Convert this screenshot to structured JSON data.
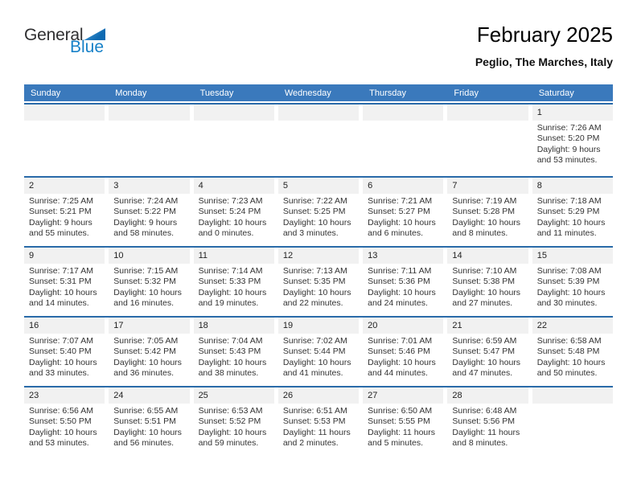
{
  "logo": {
    "general": "General",
    "blue": "Blue"
  },
  "header": {
    "title": "February 2025",
    "subtitle": "Peglio, The Marches, Italy"
  },
  "weekdays": [
    "Sunday",
    "Monday",
    "Tuesday",
    "Wednesday",
    "Thursday",
    "Friday",
    "Saturday"
  ],
  "colors": {
    "header_bg": "#3a79bc",
    "week_line": "#2a6ba9",
    "band_bg": "#f1f1f1",
    "logo_blue": "#1781c8"
  },
  "weeks": [
    [
      {
        "day": ""
      },
      {
        "day": ""
      },
      {
        "day": ""
      },
      {
        "day": ""
      },
      {
        "day": ""
      },
      {
        "day": ""
      },
      {
        "day": "1",
        "sunrise": "Sunrise: 7:26 AM",
        "sunset": "Sunset: 5:20 PM",
        "daylight": [
          "Daylight: 9 hours",
          "and 53 minutes."
        ]
      }
    ],
    [
      {
        "day": "2",
        "sunrise": "Sunrise: 7:25 AM",
        "sunset": "Sunset: 5:21 PM",
        "daylight": [
          "Daylight: 9 hours",
          "and 55 minutes."
        ]
      },
      {
        "day": "3",
        "sunrise": "Sunrise: 7:24 AM",
        "sunset": "Sunset: 5:22 PM",
        "daylight": [
          "Daylight: 9 hours",
          "and 58 minutes."
        ]
      },
      {
        "day": "4",
        "sunrise": "Sunrise: 7:23 AM",
        "sunset": "Sunset: 5:24 PM",
        "daylight": [
          "Daylight: 10 hours",
          "and 0 minutes."
        ]
      },
      {
        "day": "5",
        "sunrise": "Sunrise: 7:22 AM",
        "sunset": "Sunset: 5:25 PM",
        "daylight": [
          "Daylight: 10 hours",
          "and 3 minutes."
        ]
      },
      {
        "day": "6",
        "sunrise": "Sunrise: 7:21 AM",
        "sunset": "Sunset: 5:27 PM",
        "daylight": [
          "Daylight: 10 hours",
          "and 6 minutes."
        ]
      },
      {
        "day": "7",
        "sunrise": "Sunrise: 7:19 AM",
        "sunset": "Sunset: 5:28 PM",
        "daylight": [
          "Daylight: 10 hours",
          "and 8 minutes."
        ]
      },
      {
        "day": "8",
        "sunrise": "Sunrise: 7:18 AM",
        "sunset": "Sunset: 5:29 PM",
        "daylight": [
          "Daylight: 10 hours",
          "and 11 minutes."
        ]
      }
    ],
    [
      {
        "day": "9",
        "sunrise": "Sunrise: 7:17 AM",
        "sunset": "Sunset: 5:31 PM",
        "daylight": [
          "Daylight: 10 hours",
          "and 14 minutes."
        ]
      },
      {
        "day": "10",
        "sunrise": "Sunrise: 7:15 AM",
        "sunset": "Sunset: 5:32 PM",
        "daylight": [
          "Daylight: 10 hours",
          "and 16 minutes."
        ]
      },
      {
        "day": "11",
        "sunrise": "Sunrise: 7:14 AM",
        "sunset": "Sunset: 5:33 PM",
        "daylight": [
          "Daylight: 10 hours",
          "and 19 minutes."
        ]
      },
      {
        "day": "12",
        "sunrise": "Sunrise: 7:13 AM",
        "sunset": "Sunset: 5:35 PM",
        "daylight": [
          "Daylight: 10 hours",
          "and 22 minutes."
        ]
      },
      {
        "day": "13",
        "sunrise": "Sunrise: 7:11 AM",
        "sunset": "Sunset: 5:36 PM",
        "daylight": [
          "Daylight: 10 hours",
          "and 24 minutes."
        ]
      },
      {
        "day": "14",
        "sunrise": "Sunrise: 7:10 AM",
        "sunset": "Sunset: 5:38 PM",
        "daylight": [
          "Daylight: 10 hours",
          "and 27 minutes."
        ]
      },
      {
        "day": "15",
        "sunrise": "Sunrise: 7:08 AM",
        "sunset": "Sunset: 5:39 PM",
        "daylight": [
          "Daylight: 10 hours",
          "and 30 minutes."
        ]
      }
    ],
    [
      {
        "day": "16",
        "sunrise": "Sunrise: 7:07 AM",
        "sunset": "Sunset: 5:40 PM",
        "daylight": [
          "Daylight: 10 hours",
          "and 33 minutes."
        ]
      },
      {
        "day": "17",
        "sunrise": "Sunrise: 7:05 AM",
        "sunset": "Sunset: 5:42 PM",
        "daylight": [
          "Daylight: 10 hours",
          "and 36 minutes."
        ]
      },
      {
        "day": "18",
        "sunrise": "Sunrise: 7:04 AM",
        "sunset": "Sunset: 5:43 PM",
        "daylight": [
          "Daylight: 10 hours",
          "and 38 minutes."
        ]
      },
      {
        "day": "19",
        "sunrise": "Sunrise: 7:02 AM",
        "sunset": "Sunset: 5:44 PM",
        "daylight": [
          "Daylight: 10 hours",
          "and 41 minutes."
        ]
      },
      {
        "day": "20",
        "sunrise": "Sunrise: 7:01 AM",
        "sunset": "Sunset: 5:46 PM",
        "daylight": [
          "Daylight: 10 hours",
          "and 44 minutes."
        ]
      },
      {
        "day": "21",
        "sunrise": "Sunrise: 6:59 AM",
        "sunset": "Sunset: 5:47 PM",
        "daylight": [
          "Daylight: 10 hours",
          "and 47 minutes."
        ]
      },
      {
        "day": "22",
        "sunrise": "Sunrise: 6:58 AM",
        "sunset": "Sunset: 5:48 PM",
        "daylight": [
          "Daylight: 10 hours",
          "and 50 minutes."
        ]
      }
    ],
    [
      {
        "day": "23",
        "sunrise": "Sunrise: 6:56 AM",
        "sunset": "Sunset: 5:50 PM",
        "daylight": [
          "Daylight: 10 hours",
          "and 53 minutes."
        ]
      },
      {
        "day": "24",
        "sunrise": "Sunrise: 6:55 AM",
        "sunset": "Sunset: 5:51 PM",
        "daylight": [
          "Daylight: 10 hours",
          "and 56 minutes."
        ]
      },
      {
        "day": "25",
        "sunrise": "Sunrise: 6:53 AM",
        "sunset": "Sunset: 5:52 PM",
        "daylight": [
          "Daylight: 10 hours",
          "and 59 minutes."
        ]
      },
      {
        "day": "26",
        "sunrise": "Sunrise: 6:51 AM",
        "sunset": "Sunset: 5:53 PM",
        "daylight": [
          "Daylight: 11 hours",
          "and 2 minutes."
        ]
      },
      {
        "day": "27",
        "sunrise": "Sunrise: 6:50 AM",
        "sunset": "Sunset: 5:55 PM",
        "daylight": [
          "Daylight: 11 hours",
          "and 5 minutes."
        ]
      },
      {
        "day": "28",
        "sunrise": "Sunrise: 6:48 AM",
        "sunset": "Sunset: 5:56 PM",
        "daylight": [
          "Daylight: 11 hours",
          "and 8 minutes."
        ]
      },
      {
        "day": ""
      }
    ]
  ]
}
